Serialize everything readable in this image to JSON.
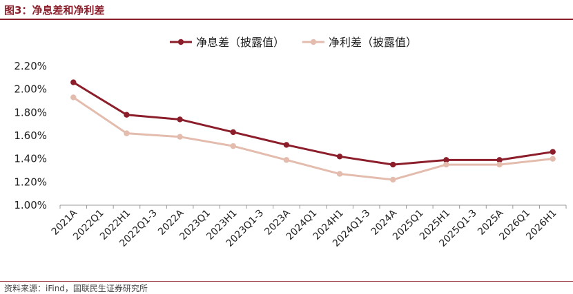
{
  "figure": {
    "title": "图3：净息差和净利差",
    "source": "资料来源：iFind，国联民生证券研究所"
  },
  "chart_data": {
    "type": "line",
    "categories": [
      "2021A",
      "2022Q1",
      "2022H1",
      "2022Q1-3",
      "2022A",
      "2023Q1",
      "2023H1",
      "2023Q1-3",
      "2023A",
      "2024Q1",
      "2024H1",
      "2024Q1-3",
      "2024A",
      "2025Q1",
      "2025H1",
      "2025Q1-3",
      "2025A",
      "2026Q1",
      "2026H1"
    ],
    "ylim": [
      1.0,
      2.2
    ],
    "yticks": [
      1.0,
      1.2,
      1.4,
      1.6,
      1.8,
      2.0,
      2.2
    ],
    "ytick_format": "percent_2dp",
    "grid": false,
    "legend_position": "top",
    "series": [
      {
        "name": "净息差（披露值）",
        "color": "#8b1e2a",
        "points": [
          {
            "x": "2021A",
            "y": 2.06
          },
          {
            "x": "2022H1",
            "y": 1.78
          },
          {
            "x": "2022A",
            "y": 1.74
          },
          {
            "x": "2023H1",
            "y": 1.63
          },
          {
            "x": "2023A",
            "y": 1.52
          },
          {
            "x": "2024H1",
            "y": 1.42
          },
          {
            "x": "2024A",
            "y": 1.35
          },
          {
            "x": "2025H1",
            "y": 1.39
          },
          {
            "x": "2025A",
            "y": 1.39
          },
          {
            "x": "2026H1",
            "y": 1.46
          }
        ]
      },
      {
        "name": "净利差（披露值）",
        "color": "#e3bcae",
        "points": [
          {
            "x": "2021A",
            "y": 1.93
          },
          {
            "x": "2022H1",
            "y": 1.62
          },
          {
            "x": "2022A",
            "y": 1.59
          },
          {
            "x": "2023H1",
            "y": 1.51
          },
          {
            "x": "2023A",
            "y": 1.39
          },
          {
            "x": "2024H1",
            "y": 1.27
          },
          {
            "x": "2024A",
            "y": 1.22
          },
          {
            "x": "2025H1",
            "y": 1.35
          },
          {
            "x": "2025A",
            "y": 1.35
          },
          {
            "x": "2026H1",
            "y": 1.4
          }
        ]
      }
    ]
  }
}
